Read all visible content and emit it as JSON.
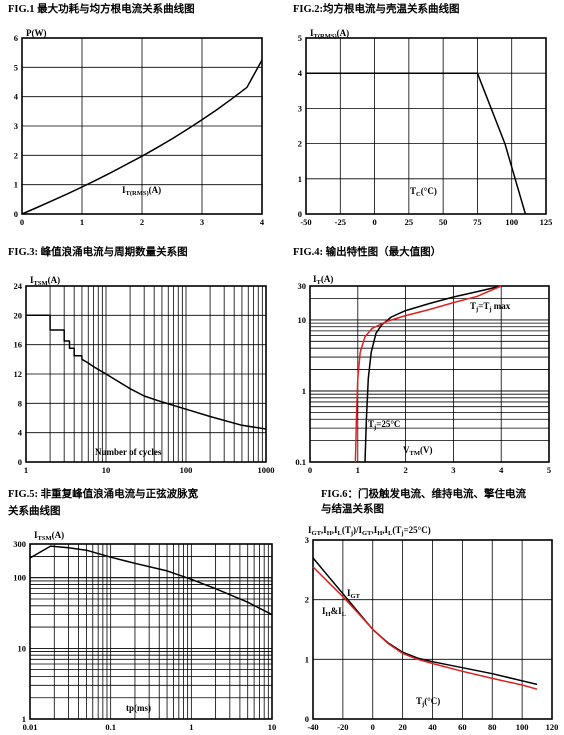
{
  "chart_data": [
    {
      "id": "fig1",
      "type": "line",
      "title": "FIG.1 最大功耗与均方根电流关系曲线图",
      "ylabel": "P(W)",
      "xlabel_main": "I",
      "xlabel_sub": "T(RMS)",
      "xlabel_unit": "(A)",
      "xlim": [
        0,
        4
      ],
      "ylim": [
        0,
        6
      ],
      "xticks": [
        0,
        1,
        2,
        3,
        4
      ],
      "yticks": [
        0,
        1,
        2,
        3,
        4,
        5,
        6
      ],
      "series": [
        {
          "color": "#000000",
          "x": [
            0,
            0.25,
            0.5,
            0.75,
            1,
            1.25,
            1.5,
            1.75,
            2,
            2.25,
            2.5,
            2.75,
            3,
            3.25,
            3.5,
            3.75,
            4
          ],
          "y": [
            0,
            0.22,
            0.45,
            0.68,
            0.92,
            1.17,
            1.43,
            1.7,
            1.97,
            2.26,
            2.56,
            2.88,
            3.21,
            3.56,
            3.93,
            4.32,
            5.25
          ]
        }
      ]
    },
    {
      "id": "fig2",
      "type": "line",
      "title": "FIG.2:均方根电流与壳温关系曲线图",
      "ylabel_main": "I",
      "ylabel_sub": "T(RMS)",
      "ylabel_unit": "(A)",
      "xlabel_main": "T",
      "xlabel_sub": "C",
      "xlabel_unit": "(°C)",
      "xlim": [
        -50,
        125
      ],
      "ylim": [
        0,
        5
      ],
      "xticks": [
        -50,
        -25,
        0,
        25,
        50,
        75,
        100,
        125
      ],
      "yticks": [
        0,
        1,
        2,
        3,
        4,
        5
      ],
      "series": [
        {
          "color": "#000000",
          "x": [
            -50,
            75,
            95,
            110
          ],
          "y": [
            4,
            4,
            2,
            0
          ]
        }
      ]
    },
    {
      "id": "fig3",
      "type": "line",
      "title": "FIG.3:   峰值浪涌电流与周期数量关系图",
      "ylabel_main": "I",
      "ylabel_sub": "TSM",
      "ylabel_unit": "(A)",
      "xlabel": "Number of cycles",
      "xscale": "log",
      "xlim": [
        1,
        1000
      ],
      "ylim": [
        0,
        24
      ],
      "xticks": [
        1,
        10,
        100,
        1000
      ],
      "yticks": [
        0,
        4,
        8,
        12,
        16,
        20,
        24
      ],
      "series": [
        {
          "color": "#000000",
          "x": [
            1,
            2,
            2,
            3,
            3,
            3.5,
            3.5,
            4,
            4,
            5,
            5,
            6,
            7,
            10,
            20,
            30,
            50,
            100,
            200,
            500,
            1000
          ],
          "y": [
            20,
            20,
            18,
            18,
            16.5,
            16.5,
            15.5,
            15.5,
            14.5,
            14.5,
            14,
            13.5,
            13,
            12,
            10,
            9,
            8.2,
            7.2,
            6.2,
            5,
            4.5
          ]
        }
      ]
    },
    {
      "id": "fig4",
      "type": "line",
      "title": "FIG.4:  输出特性图（最大值图）",
      "ylabel_main": "I",
      "ylabel_sub": "T",
      "ylabel_unit": "(A)",
      "xlabel_main": "V",
      "xlabel_sub": "TM",
      "xlabel_unit": "(V)",
      "yscale": "log",
      "xlim": [
        0,
        5
      ],
      "ylim": [
        0.1,
        30
      ],
      "xticks": [
        0,
        1,
        2,
        3,
        4,
        5
      ],
      "yticks": [
        0.1,
        1,
        10,
        30
      ],
      "series": [
        {
          "name": "Tj=25°C",
          "name_main": "T",
          "name_sub": "j",
          "name_rest": "=25°C",
          "color": "#000000",
          "x": [
            1.15,
            1.18,
            1.22,
            1.28,
            1.38,
            1.5,
            1.7,
            2.0,
            2.5,
            3.0,
            3.5,
            4.0
          ],
          "y": [
            0.1,
            0.4,
            1.5,
            3.5,
            6.5,
            8.5,
            11,
            13.5,
            17,
            21,
            25,
            30
          ]
        },
        {
          "name": "Tj=Tj max",
          "name_main": "T",
          "name_sub": "j",
          "name_rest": "=T",
          "name_sub2": "j",
          "name_tail": "max",
          "color": "#e02020",
          "x": [
            0.95,
            0.97,
            1.0,
            1.05,
            1.15,
            1.3,
            1.6,
            2.0,
            2.5,
            3.0,
            3.5,
            4.0
          ],
          "y": [
            0.1,
            0.4,
            1.5,
            3.5,
            5.8,
            7.6,
            9.5,
            11.5,
            14,
            17.5,
            21.5,
            30
          ]
        }
      ]
    },
    {
      "id": "fig5",
      "type": "line",
      "title": "FIG.5:  非重复峰值浪涌电流与正弦波脉宽",
      "title_line2": "关系曲线图",
      "ylabel_main": "I",
      "ylabel_sub": "TSM",
      "ylabel_unit": "(A)",
      "xlabel": "tp(ms)",
      "xscale": "log",
      "yscale": "log",
      "xlim": [
        0.01,
        10
      ],
      "ylim": [
        1,
        300
      ],
      "xticks": [
        0.01,
        0.1,
        1,
        10
      ],
      "yticks": [
        1,
        10,
        100,
        300
      ],
      "series": [
        {
          "color": "#000000",
          "x": [
            0.01,
            0.018,
            0.03,
            0.05,
            0.1,
            0.2,
            0.5,
            1,
            2,
            5,
            10
          ],
          "y": [
            190,
            280,
            265,
            245,
            195,
            160,
            125,
            95,
            70,
            45,
            30
          ]
        }
      ]
    },
    {
      "id": "fig6",
      "type": "line",
      "title": "FIG.6：门极触发电流、维持电流、擎住电流",
      "title_line2": "与结温关系图",
      "ylabel": "IGT,IH,IL(Tj)/IGT,IH,IL(Tj=25°C)",
      "ylabel_parts": [
        "I",
        "GT",
        ",I",
        "H",
        ",I",
        "L",
        "(T",
        "j",
        ")/I",
        "GT",
        ",I",
        "H",
        ",I",
        "L",
        "(T",
        "j",
        "=25°C)"
      ],
      "xlabel_main": "T",
      "xlabel_sub": "j",
      "xlabel_unit": "(°C)",
      "xlim": [
        -40,
        120
      ],
      "ylim": [
        0,
        3
      ],
      "xticks": [
        -40,
        -20,
        0,
        20,
        40,
        60,
        80,
        100,
        120
      ],
      "yticks": [
        0,
        1,
        2,
        3
      ],
      "series": [
        {
          "name": "IGT",
          "name_main": "I",
          "name_sub": "GT",
          "color": "#000000",
          "x": [
            -40,
            -30,
            -20,
            -10,
            0,
            10,
            20,
            30,
            40,
            60,
            80,
            100,
            110
          ],
          "y": [
            2.7,
            2.4,
            2.1,
            1.8,
            1.5,
            1.28,
            1.12,
            1.02,
            0.96,
            0.86,
            0.76,
            0.64,
            0.58
          ]
        },
        {
          "name": "IH&IL",
          "name_parts": [
            "I",
            "H",
            "&I",
            "L"
          ],
          "color": "#e02020",
          "x": [
            -40,
            -30,
            -20,
            -10,
            0,
            10,
            20,
            30,
            40,
            60,
            80,
            100,
            110
          ],
          "y": [
            2.55,
            2.3,
            2.05,
            1.78,
            1.5,
            1.27,
            1.1,
            1.0,
            0.93,
            0.8,
            0.68,
            0.57,
            0.5
          ]
        }
      ]
    }
  ]
}
